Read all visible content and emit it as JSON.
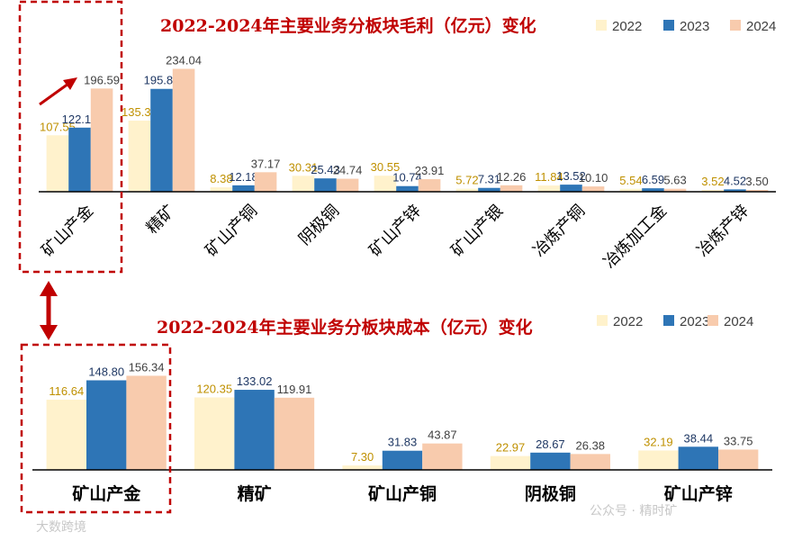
{
  "colors": {
    "y2022": "#fff2cc",
    "y2023": "#2e75b6",
    "y2024": "#f8cbad",
    "label2022": "#bf9000",
    "label2023": "#1f3864",
    "label2024": "#404040",
    "title": "#c00000",
    "highlight": "#c00000"
  },
  "watermarks": {
    "bottom_left": "大数跨境",
    "bottom_right": "公众号 · 精时矿"
  },
  "chart_data": [
    {
      "type": "bar",
      "title": "2022-2024年主要业务分板块毛利（亿元）变化",
      "legend": [
        "2022",
        "2023",
        "2024"
      ],
      "legend_position": "top-right",
      "categories": [
        "矿山产金",
        "精矿",
        "矿山产铜",
        "阴极铜",
        "矿山产锌",
        "矿山产银",
        "冶炼产铜",
        "冶炼加工金",
        "冶炼产锌"
      ],
      "series": [
        {
          "name": "2022",
          "values": [
            107.55,
            135.38,
            8.38,
            30.31,
            30.55,
            5.72,
            11.84,
            5.54,
            3.52
          ]
        },
        {
          "name": "2023",
          "values": [
            122.1,
            195.89,
            12.18,
            25.43,
            10.74,
            7.31,
            13.52,
            6.59,
            4.52
          ]
        },
        {
          "name": "2024",
          "values": [
            196.59,
            234.04,
            37.17,
            24.74,
            23.91,
            12.26,
            10.1,
            5.63,
            3.5
          ]
        }
      ],
      "labels": [
        [
          "107.55",
          "135.38",
          "8.38",
          "30.31",
          "30.55",
          "5.72",
          "11.84",
          "5.54",
          "3.52"
        ],
        [
          "122.10",
          "195.89",
          "12.18",
          "25.43",
          "10.74",
          "7.31",
          "13.52",
          "6.59",
          "4.52"
        ],
        [
          "196.59",
          "234.04",
          "37.17",
          "24.74",
          "23.91",
          "12.26",
          "10.10",
          "5.63",
          "3.50"
        ]
      ],
      "ylim": [
        0,
        240
      ],
      "grid": false
    },
    {
      "type": "bar",
      "title": "2022-2024年主要业务分板块成本（亿元）变化",
      "legend": [
        "2022",
        "2023",
        "2024"
      ],
      "legend_position": "top-right",
      "categories": [
        "矿山产金",
        "精矿",
        "矿山产铜",
        "阴极铜",
        "矿山产锌"
      ],
      "series": [
        {
          "name": "2022",
          "values": [
            116.64,
            120.35,
            7.3,
            22.97,
            32.19
          ]
        },
        {
          "name": "2023",
          "values": [
            148.8,
            133.02,
            31.83,
            28.67,
            38.44
          ]
        },
        {
          "name": "2024",
          "values": [
            156.34,
            119.91,
            43.87,
            26.38,
            33.75
          ]
        }
      ],
      "labels": [
        [
          "116.64",
          "120.35",
          "7.30",
          "22.97",
          "32.19"
        ],
        [
          "148.80",
          "133.02",
          "31.83",
          "28.67",
          "38.44"
        ],
        [
          "156.34",
          "119.91",
          "43.87",
          "26.38",
          "33.75"
        ]
      ],
      "ylim": [
        0,
        160
      ],
      "grid": false
    }
  ]
}
